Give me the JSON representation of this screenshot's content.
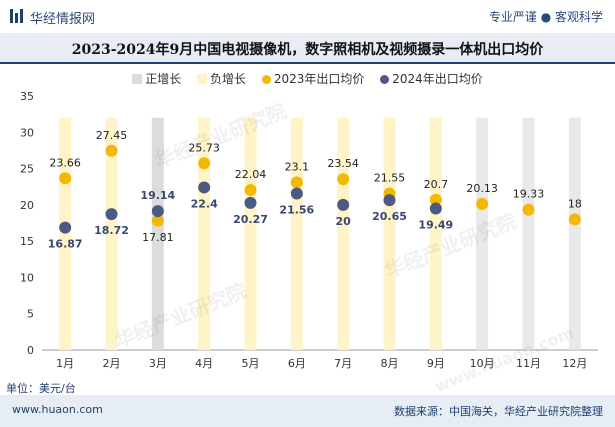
{
  "header": {
    "brand": "华经情报网",
    "tagline": "专业严谨 ● 客观科学"
  },
  "title": "2023-2024年9月中国电视摄像机，数字照相机及视频摄录一体机出口均价",
  "legend": {
    "items": [
      {
        "label": "正增长",
        "color": "#dcdcdc"
      },
      {
        "label": "负增长",
        "color": "#fff3c8"
      },
      {
        "label": "2023年出口均价",
        "color": "#f5b800"
      },
      {
        "label": "2024年出口均价",
        "color": "#4b5a84"
      }
    ]
  },
  "unit_label": "单位：美元/台",
  "footer": {
    "website": "www.huaon.com",
    "source": "数据来源：中国海关，华经产业研究院整理"
  },
  "watermarks": [
    "华经产业研究院",
    "华经产业研究院",
    "华经产业研究院",
    "www.huaon.com"
  ],
  "chart_data": {
    "type": "scatter",
    "categories": [
      "1月",
      "2月",
      "3月",
      "4月",
      "5月",
      "6月",
      "7月",
      "8月",
      "9月",
      "10月",
      "11月",
      "12月"
    ],
    "ylim": [
      0,
      35
    ],
    "yticks": [
      0,
      5,
      10,
      15,
      20,
      25,
      30,
      35
    ],
    "series": [
      {
        "name": "2023年出口均价",
        "values": [
          23.66,
          27.45,
          17.81,
          25.73,
          22.04,
          23.1,
          23.54,
          21.55,
          20.7,
          20.13,
          19.33,
          18
        ]
      },
      {
        "name": "2024年出口均价",
        "values": [
          16.87,
          18.72,
          19.14,
          22.4,
          20.27,
          21.56,
          20,
          20.65,
          19.49,
          null,
          null,
          null
        ]
      }
    ],
    "growth_bars": {
      "max": 32,
      "positive_color": "#dcdcdc",
      "negative_color": "#fff3c8",
      "status": [
        "negative",
        "negative",
        "positive",
        "negative",
        "negative",
        "negative",
        "negative",
        "negative",
        "negative",
        "none",
        "none",
        "none"
      ]
    }
  }
}
